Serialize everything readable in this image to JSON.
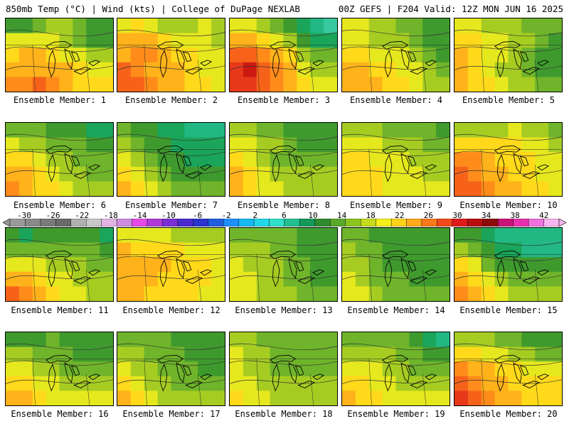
{
  "header": {
    "left": "850mb Temp (°C) | Wind (kts) | College of DuPage NEXLAB",
    "right": "00Z GEFS | F204 Valid: 12Z MON JUN 16 2025"
  },
  "colorbar": {
    "labels": [
      "-30",
      "-26",
      "-22",
      "-18",
      "-14",
      "-10",
      "-6",
      "-2",
      "2",
      "6",
      "10",
      "14",
      "18",
      "22",
      "26",
      "30",
      "34",
      "38",
      "42"
    ],
    "colors": [
      "#9a9a9a",
      "#8a8a8a",
      "#7a7a7a",
      "#6a6a6a",
      "#b0b0b0",
      "#c8c8c8",
      "#e2b4e6",
      "#d08ce0",
      "#e64ae6",
      "#b03ad8",
      "#7a2fd6",
      "#4a2ad0",
      "#2a34d0",
      "#1f5ee0",
      "#1e90ff",
      "#18b8f0",
      "#22d8e8",
      "#30e0c8",
      "#22c090",
      "#149a5a",
      "#2e8b2e",
      "#5aa82a",
      "#8cc41e",
      "#c6dc1a",
      "#f4f01a",
      "#ffd21a",
      "#ffaa1a",
      "#ff7a1a",
      "#f44a1a",
      "#e01a1a",
      "#b80e0e",
      "#8c0a0a",
      "#c81478",
      "#e830b0",
      "#f070e0",
      "#f8b4f0"
    ]
  },
  "panels": [
    {
      "label": "Ensemble Member: 1",
      "temps": [
        [
          8,
          8,
          10,
          11,
          11,
          10,
          8,
          8
        ],
        [
          14,
          14,
          14,
          14,
          12,
          10,
          8,
          8
        ],
        [
          16,
          18,
          18,
          16,
          14,
          14,
          12,
          12
        ],
        [
          18,
          18,
          18,
          18,
          18,
          16,
          14,
          14
        ],
        [
          20,
          20,
          22,
          20,
          18,
          16,
          16,
          16
        ]
      ]
    },
    {
      "label": "Ensemble Member: 2",
      "temps": [
        [
          14,
          16,
          14,
          12,
          12,
          12,
          14,
          12
        ],
        [
          18,
          18,
          18,
          16,
          14,
          14,
          14,
          12
        ],
        [
          18,
          20,
          20,
          18,
          16,
          16,
          14,
          14
        ],
        [
          22,
          20,
          18,
          18,
          18,
          16,
          14,
          14
        ],
        [
          22,
          22,
          20,
          18,
          18,
          16,
          16,
          14
        ]
      ]
    },
    {
      "label": "Ensemble Member: 3",
      "temps": [
        [
          14,
          14,
          12,
          10,
          8,
          6,
          4,
          2
        ],
        [
          18,
          18,
          16,
          14,
          12,
          8,
          6,
          6
        ],
        [
          22,
          22,
          20,
          18,
          16,
          12,
          10,
          10
        ],
        [
          24,
          26,
          22,
          20,
          18,
          14,
          12,
          12
        ],
        [
          24,
          24,
          22,
          20,
          18,
          16,
          14,
          14
        ]
      ]
    },
    {
      "label": "Ensemble Member: 4",
      "temps": [
        [
          14,
          14,
          12,
          12,
          10,
          10,
          8,
          8
        ],
        [
          14,
          14,
          12,
          12,
          12,
          10,
          8,
          8
        ],
        [
          16,
          16,
          14,
          14,
          14,
          12,
          10,
          8
        ],
        [
          18,
          18,
          16,
          16,
          14,
          14,
          12,
          10
        ],
        [
          18,
          18,
          18,
          16,
          16,
          14,
          12,
          12
        ]
      ]
    },
    {
      "label": "Ensemble Member: 5",
      "temps": [
        [
          14,
          14,
          12,
          12,
          12,
          10,
          10,
          10
        ],
        [
          16,
          16,
          14,
          14,
          12,
          12,
          10,
          8
        ],
        [
          18,
          16,
          14,
          14,
          12,
          10,
          8,
          8
        ],
        [
          18,
          16,
          14,
          12,
          12,
          10,
          8,
          8
        ],
        [
          18,
          16,
          16,
          14,
          12,
          12,
          10,
          10
        ]
      ]
    },
    {
      "label": "Ensemble Member: 6",
      "temps": [
        [
          10,
          10,
          10,
          8,
          8,
          8,
          6,
          6
        ],
        [
          14,
          12,
          12,
          10,
          10,
          10,
          8,
          8
        ],
        [
          16,
          16,
          14,
          12,
          12,
          10,
          10,
          10
        ],
        [
          18,
          18,
          16,
          14,
          12,
          12,
          10,
          10
        ],
        [
          20,
          18,
          16,
          16,
          14,
          12,
          12,
          12
        ]
      ]
    },
    {
      "label": "Ensemble Member: 7",
      "temps": [
        [
          10,
          8,
          8,
          6,
          6,
          4,
          4,
          4
        ],
        [
          12,
          10,
          8,
          8,
          6,
          6,
          6,
          6
        ],
        [
          14,
          12,
          10,
          8,
          8,
          6,
          6,
          6
        ],
        [
          16,
          14,
          12,
          10,
          8,
          8,
          8,
          8
        ],
        [
          18,
          16,
          14,
          12,
          10,
          10,
          10,
          10
        ]
      ]
    },
    {
      "label": "Ensemble Member: 8",
      "temps": [
        [
          12,
          12,
          10,
          10,
          8,
          8,
          8,
          8
        ],
        [
          14,
          14,
          12,
          12,
          10,
          8,
          8,
          8
        ],
        [
          16,
          14,
          12,
          10,
          10,
          10,
          10,
          10
        ],
        [
          18,
          16,
          14,
          12,
          12,
          12,
          12,
          12
        ],
        [
          18,
          16,
          14,
          14,
          12,
          12,
          12,
          12
        ]
      ]
    },
    {
      "label": "Ensemble Member: 9",
      "temps": [
        [
          12,
          12,
          12,
          10,
          10,
          10,
          10,
          8
        ],
        [
          14,
          14,
          14,
          12,
          12,
          12,
          10,
          10
        ],
        [
          16,
          16,
          14,
          14,
          14,
          12,
          12,
          12
        ],
        [
          16,
          16,
          16,
          14,
          14,
          14,
          12,
          12
        ],
        [
          16,
          16,
          16,
          14,
          14,
          14,
          14,
          14
        ]
      ]
    },
    {
      "label": "Ensemble Member: 10",
      "temps": [
        [
          12,
          12,
          12,
          12,
          14,
          12,
          12,
          10
        ],
        [
          16,
          16,
          16,
          16,
          16,
          14,
          14,
          12
        ],
        [
          20,
          20,
          18,
          16,
          16,
          16,
          14,
          14
        ],
        [
          22,
          20,
          18,
          18,
          16,
          16,
          14,
          14
        ],
        [
          22,
          22,
          20,
          18,
          18,
          16,
          16,
          14
        ]
      ]
    },
    {
      "label": "Ensemble Member: 11",
      "temps": [
        [
          8,
          6,
          8,
          8,
          8,
          8,
          8,
          6
        ],
        [
          10,
          10,
          10,
          10,
          10,
          10,
          10,
          8
        ],
        [
          14,
          14,
          14,
          12,
          12,
          12,
          10,
          10
        ],
        [
          18,
          18,
          16,
          14,
          14,
          12,
          12,
          12
        ],
        [
          22,
          20,
          18,
          16,
          14,
          14,
          12,
          12
        ]
      ]
    },
    {
      "label": "Ensemble Member: 12",
      "temps": [
        [
          14,
          14,
          14,
          14,
          12,
          12,
          12,
          12
        ],
        [
          18,
          16,
          16,
          16,
          16,
          14,
          14,
          14
        ],
        [
          18,
          18,
          18,
          18,
          16,
          16,
          16,
          14
        ],
        [
          18,
          18,
          18,
          16,
          16,
          16,
          16,
          14
        ],
        [
          18,
          18,
          16,
          16,
          16,
          16,
          14,
          14
        ]
      ]
    },
    {
      "label": "Ensemble Member: 13",
      "temps": [
        [
          10,
          10,
          10,
          10,
          10,
          8,
          8,
          8
        ],
        [
          12,
          12,
          12,
          10,
          10,
          8,
          8,
          8
        ],
        [
          14,
          12,
          12,
          12,
          10,
          10,
          8,
          8
        ],
        [
          14,
          14,
          12,
          12,
          10,
          10,
          8,
          8
        ],
        [
          14,
          14,
          12,
          12,
          12,
          10,
          10,
          10
        ]
      ]
    },
    {
      "label": "Ensemble Member: 14",
      "temps": [
        [
          10,
          10,
          8,
          8,
          8,
          8,
          8,
          8
        ],
        [
          12,
          10,
          10,
          8,
          8,
          8,
          8,
          8
        ],
        [
          12,
          12,
          10,
          8,
          8,
          8,
          8,
          8
        ],
        [
          14,
          12,
          10,
          10,
          10,
          8,
          8,
          8
        ],
        [
          14,
          14,
          12,
          10,
          10,
          10,
          10,
          10
        ]
      ]
    },
    {
      "label": "Ensemble Member: 15",
      "temps": [
        [
          8,
          8,
          6,
          4,
          4,
          4,
          4,
          4
        ],
        [
          12,
          10,
          8,
          6,
          6,
          4,
          4,
          4
        ],
        [
          16,
          14,
          10,
          8,
          8,
          8,
          8,
          8
        ],
        [
          18,
          16,
          14,
          12,
          10,
          10,
          10,
          10
        ],
        [
          20,
          18,
          16,
          14,
          12,
          12,
          12,
          12
        ]
      ]
    },
    {
      "label": "Ensemble Member: 16",
      "temps": [
        [
          8,
          8,
          8,
          10,
          8,
          8,
          8,
          8
        ],
        [
          12,
          12,
          10,
          10,
          10,
          8,
          8,
          8
        ],
        [
          14,
          14,
          12,
          12,
          10,
          10,
          10,
          10
        ],
        [
          16,
          16,
          14,
          14,
          12,
          12,
          12,
          12
        ],
        [
          18,
          18,
          16,
          14,
          14,
          14,
          14,
          14
        ]
      ]
    },
    {
      "label": "Ensemble Member: 17",
      "temps": [
        [
          10,
          10,
          10,
          10,
          8,
          8,
          8,
          8
        ],
        [
          12,
          12,
          10,
          10,
          10,
          8,
          8,
          8
        ],
        [
          14,
          12,
          12,
          10,
          10,
          10,
          8,
          8
        ],
        [
          16,
          14,
          12,
          12,
          10,
          10,
          10,
          10
        ],
        [
          18,
          16,
          14,
          12,
          12,
          12,
          12,
          12
        ]
      ]
    },
    {
      "label": "Ensemble Member: 18",
      "temps": [
        [
          12,
          12,
          10,
          10,
          10,
          10,
          10,
          10
        ],
        [
          14,
          12,
          12,
          10,
          10,
          10,
          10,
          10
        ],
        [
          14,
          12,
          12,
          10,
          10,
          10,
          10,
          10
        ],
        [
          14,
          14,
          12,
          12,
          12,
          12,
          12,
          12
        ],
        [
          16,
          14,
          14,
          12,
          12,
          12,
          12,
          12
        ]
      ]
    },
    {
      "label": "Ensemble Member: 19",
      "temps": [
        [
          10,
          10,
          10,
          10,
          10,
          8,
          6,
          4
        ],
        [
          12,
          12,
          12,
          12,
          10,
          10,
          8,
          8
        ],
        [
          14,
          14,
          14,
          12,
          12,
          10,
          10,
          10
        ],
        [
          16,
          16,
          14,
          14,
          12,
          12,
          12,
          12
        ],
        [
          18,
          16,
          16,
          14,
          14,
          14,
          14,
          14
        ]
      ]
    },
    {
      "label": "Ensemble Member: 20",
      "temps": [
        [
          12,
          12,
          12,
          10,
          10,
          8,
          8,
          8
        ],
        [
          16,
          16,
          14,
          14,
          12,
          12,
          10,
          10
        ],
        [
          20,
          18,
          18,
          16,
          16,
          14,
          14,
          14
        ],
        [
          22,
          20,
          18,
          18,
          16,
          16,
          16,
          16
        ],
        [
          24,
          22,
          20,
          18,
          18,
          16,
          16,
          16
        ]
      ]
    }
  ]
}
